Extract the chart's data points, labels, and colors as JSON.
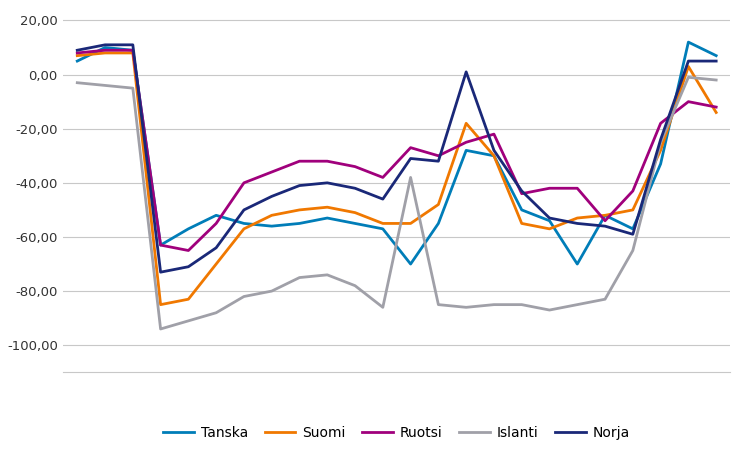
{
  "series": {
    "Tanska": [
      5,
      10,
      9,
      -63,
      -57,
      -52,
      -55,
      -56,
      -55,
      -53,
      -55,
      -57,
      -70,
      -55,
      -28,
      -30,
      -50,
      -54,
      -70,
      -52,
      -57,
      -33,
      12,
      7
    ],
    "Suomi": [
      7,
      8,
      8,
      -85,
      -83,
      -70,
      -57,
      -52,
      -50,
      -49,
      -51,
      -55,
      -55,
      -48,
      -18,
      -30,
      -55,
      -57,
      -53,
      -52,
      -50,
      -28,
      3,
      -14
    ],
    "Ruotsi": [
      8,
      9,
      9,
      -63,
      -65,
      -55,
      -40,
      -36,
      -32,
      -32,
      -34,
      -38,
      -27,
      -30,
      -25,
      -22,
      -44,
      -42,
      -42,
      -54,
      -43,
      -18,
      -10,
      -12
    ],
    "Islanti": [
      -3,
      -4,
      -5,
      -94,
      -91,
      -88,
      -82,
      -80,
      -75,
      -74,
      -78,
      -86,
      -38,
      -85,
      -86,
      -85,
      -85,
      -87,
      -85,
      -83,
      -65,
      -25,
      -1,
      -2
    ],
    "Norja": [
      9,
      11,
      11,
      -73,
      -71,
      -64,
      -50,
      -45,
      -41,
      -40,
      -42,
      -46,
      -31,
      -32,
      1,
      -28,
      -43,
      -53,
      -55,
      -56,
      -59,
      -24,
      5,
      5
    ]
  },
  "colors": {
    "Tanska": "#007db8",
    "Suomi": "#f07800",
    "Ruotsi": "#a0007c",
    "Islanti": "#a0a0a8",
    "Norja": "#1a2878"
  },
  "ylim": [
    -110,
    25
  ],
  "yticks": [
    20,
    0,
    -20,
    -40,
    -60,
    -80,
    -100
  ],
  "year_ticks": {
    "2020": 3.5,
    "2021": 15.5
  },
  "xlim": [
    -0.5,
    23.5
  ],
  "grid_color": "#c8c8c8",
  "background_color": "#ffffff",
  "line_width": 2.0,
  "legend_fontsize": 10,
  "tick_fontsize": 9.5,
  "year_fontsize": 11
}
